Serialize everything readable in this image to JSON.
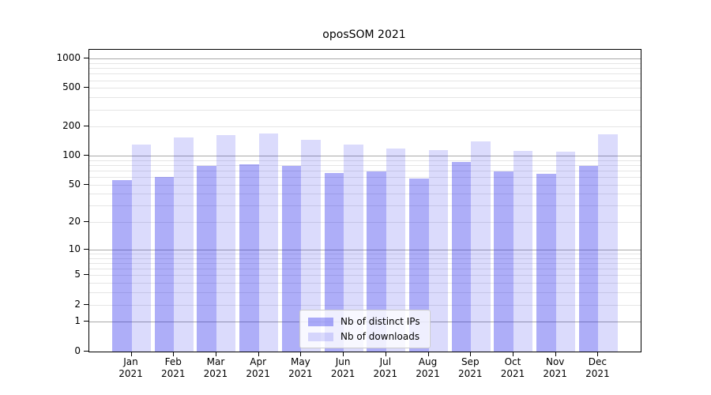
{
  "chart_data": {
    "type": "bar",
    "title": "oposSOM 2021",
    "categories": [
      {
        "month": "Jan",
        "year": "2021"
      },
      {
        "month": "Feb",
        "year": "2021"
      },
      {
        "month": "Mar",
        "year": "2021"
      },
      {
        "month": "Apr",
        "year": "2021"
      },
      {
        "month": "May",
        "year": "2021"
      },
      {
        "month": "Jun",
        "year": "2021"
      },
      {
        "month": "Jul",
        "year": "2021"
      },
      {
        "month": "Aug",
        "year": "2021"
      },
      {
        "month": "Sep",
        "year": "2021"
      },
      {
        "month": "Oct",
        "year": "2021"
      },
      {
        "month": "Nov",
        "year": "2021"
      },
      {
        "month": "Dec",
        "year": "2021"
      }
    ],
    "series": [
      {
        "name": "Nb of distinct IPs",
        "color": "rgba(30,30,235,0.36)",
        "values": [
          56,
          61,
          79,
          83,
          79,
          67,
          69,
          58,
          87,
          70,
          66,
          79
        ]
      },
      {
        "name": "Nb of downloads",
        "color": "rgba(30,30,235,0.16)",
        "values": [
          132,
          157,
          165,
          171,
          148,
          132,
          119,
          116,
          143,
          114,
          112,
          168
        ]
      }
    ],
    "y_axis": {
      "scale": "log1p",
      "top_value": 1244,
      "ticks": [
        {
          "label": "0",
          "value": 0
        },
        {
          "label": "1",
          "value": 1
        },
        {
          "label": "2",
          "value": 2
        },
        {
          "label": "5",
          "value": 5
        },
        {
          "label": "10",
          "value": 10
        },
        {
          "label": "20",
          "value": 20
        },
        {
          "label": "50",
          "value": 50
        },
        {
          "label": "100",
          "value": 100
        },
        {
          "label": "200",
          "value": 200
        },
        {
          "label": "500",
          "value": 500
        },
        {
          "label": "1000",
          "value": 1000
        }
      ],
      "major_gridlines": [
        1,
        10,
        100,
        1000
      ],
      "minor_gridlines": [
        2,
        3,
        4,
        5,
        6,
        7,
        8,
        9,
        20,
        30,
        40,
        50,
        60,
        70,
        80,
        90,
        200,
        300,
        400,
        500,
        600,
        700,
        800,
        900
      ]
    },
    "legend_position": "bottom-center",
    "grid": true,
    "colors": {
      "major_grid": "#a9a9a9",
      "minor_grid": "#e5e5e5",
      "spine": "#000000",
      "background": "#ffffff"
    }
  }
}
